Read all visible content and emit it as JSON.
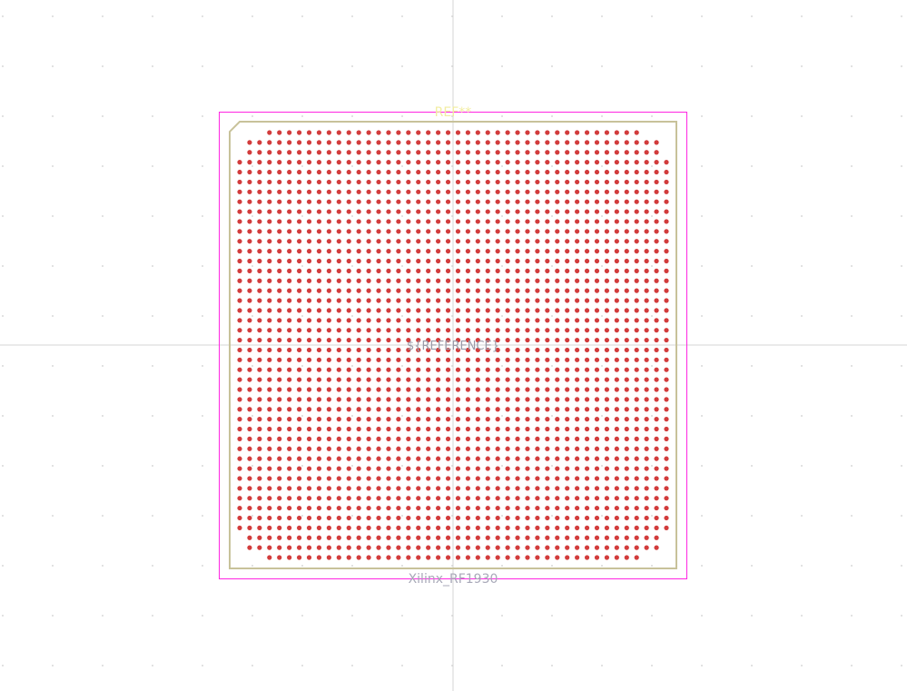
{
  "editor": {
    "reference_label": "REF**",
    "value_label": "Xilinx_RF1930",
    "fab_label": "${REFERENCE}"
  },
  "footprint": {
    "pad_rows": 44,
    "pad_columns": 44,
    "pad_shape": "circle",
    "corner_pads_removed": 3
  },
  "colors": {
    "background": "#ffffff",
    "grid_dot": "#d8d8d8",
    "crosshair": "#d4d4d4",
    "courtyard": "#ff26e2",
    "silkscreen": "#f2eda1",
    "fab_outline": "#c8c29a",
    "pad": "#d23c3c",
    "value_text": "#a8a8b8",
    "fab_text": "#9a9aa8"
  }
}
